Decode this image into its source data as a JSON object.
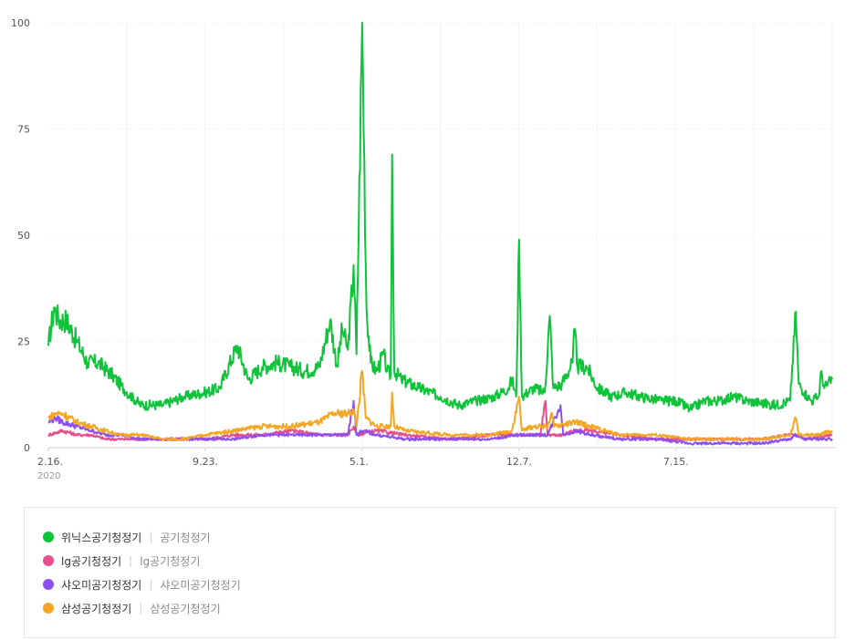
{
  "chart_data": {
    "type": "line",
    "ylim": [
      0,
      100
    ],
    "y_ticks": [
      "0",
      "25",
      "50",
      "75",
      "100"
    ],
    "x_ticks": [
      {
        "label": "2.16.",
        "sub": "2020",
        "index": 0
      },
      {
        "label": "9.23.",
        "index": 220
      },
      {
        "label": "5.1.",
        "index": 440
      },
      {
        "label": "12.7.",
        "index": 660
      },
      {
        "label": "7.15.",
        "index": 880
      }
    ],
    "n_points": 1100,
    "grid": true,
    "series": [
      {
        "name": "위닉스공기청정기",
        "term": "공기청정기",
        "color": "#0fc33a",
        "anchors": [
          [
            0,
            24
          ],
          [
            8,
            33
          ],
          [
            15,
            30
          ],
          [
            25,
            30
          ],
          [
            40,
            25
          ],
          [
            55,
            20
          ],
          [
            70,
            20
          ],
          [
            90,
            17
          ],
          [
            110,
            13
          ],
          [
            130,
            10
          ],
          [
            160,
            10
          ],
          [
            190,
            12
          ],
          [
            220,
            13
          ],
          [
            240,
            14
          ],
          [
            265,
            24
          ],
          [
            280,
            16
          ],
          [
            300,
            19
          ],
          [
            320,
            20
          ],
          [
            340,
            19
          ],
          [
            360,
            18
          ],
          [
            380,
            19
          ],
          [
            395,
            30
          ],
          [
            405,
            19
          ],
          [
            412,
            28
          ],
          [
            420,
            23
          ],
          [
            428,
            43
          ],
          [
            432,
            22
          ],
          [
            440,
            100
          ],
          [
            446,
            33
          ],
          [
            452,
            20
          ],
          [
            460,
            18
          ],
          [
            470,
            22
          ],
          [
            475,
            18
          ],
          [
            480,
            17
          ],
          [
            482,
            69
          ],
          [
            485,
            18
          ],
          [
            495,
            16
          ],
          [
            520,
            14
          ],
          [
            550,
            12
          ],
          [
            575,
            10
          ],
          [
            600,
            11
          ],
          [
            625,
            12
          ],
          [
            645,
            14
          ],
          [
            650,
            16
          ],
          [
            656,
            12
          ],
          [
            660,
            49
          ],
          [
            664,
            12
          ],
          [
            680,
            14
          ],
          [
            696,
            13
          ],
          [
            703,
            31
          ],
          [
            708,
            14
          ],
          [
            720,
            15
          ],
          [
            735,
            20
          ],
          [
            738,
            28
          ],
          [
            742,
            19
          ],
          [
            755,
            19
          ],
          [
            770,
            14
          ],
          [
            790,
            12
          ],
          [
            810,
            13
          ],
          [
            830,
            12
          ],
          [
            860,
            11
          ],
          [
            880,
            11
          ],
          [
            900,
            9
          ],
          [
            920,
            11
          ],
          [
            940,
            11
          ],
          [
            960,
            12
          ],
          [
            980,
            11
          ],
          [
            1020,
            10
          ],
          [
            1040,
            11
          ],
          [
            1048,
            32
          ],
          [
            1052,
            15
          ],
          [
            1060,
            13
          ],
          [
            1070,
            11
          ],
          [
            1080,
            12
          ],
          [
            1084,
            18
          ],
          [
            1088,
            14
          ],
          [
            1099,
            16
          ]
        ]
      },
      {
        "name": "lg공기청정기",
        "term": "lg공기청정기",
        "color": "#e64f8c",
        "anchors": [
          [
            0,
            3
          ],
          [
            20,
            4
          ],
          [
            40,
            3
          ],
          [
            60,
            3
          ],
          [
            80,
            2
          ],
          [
            110,
            2
          ],
          [
            160,
            2
          ],
          [
            200,
            2
          ],
          [
            220,
            2
          ],
          [
            260,
            3
          ],
          [
            300,
            3
          ],
          [
            340,
            4
          ],
          [
            380,
            3
          ],
          [
            420,
            3
          ],
          [
            428,
            5
          ],
          [
            432,
            3
          ],
          [
            460,
            4
          ],
          [
            500,
            3
          ],
          [
            560,
            2
          ],
          [
            620,
            3
          ],
          [
            650,
            3
          ],
          [
            660,
            3
          ],
          [
            690,
            3
          ],
          [
            697,
            11
          ],
          [
            700,
            3
          ],
          [
            720,
            3
          ],
          [
            740,
            4
          ],
          [
            760,
            4
          ],
          [
            800,
            3
          ],
          [
            850,
            2
          ],
          [
            900,
            2
          ],
          [
            950,
            2
          ],
          [
            1000,
            2
          ],
          [
            1040,
            3
          ],
          [
            1048,
            3
          ],
          [
            1060,
            2
          ],
          [
            1099,
            3
          ]
        ]
      },
      {
        "name": "샤오미공기청정기",
        "term": "샤오미공기청정기",
        "color": "#8e4ff0",
        "anchors": [
          [
            0,
            6
          ],
          [
            10,
            7
          ],
          [
            20,
            6
          ],
          [
            40,
            5
          ],
          [
            60,
            4
          ],
          [
            80,
            3
          ],
          [
            100,
            3
          ],
          [
            130,
            2
          ],
          [
            160,
            2
          ],
          [
            190,
            2
          ],
          [
            220,
            2
          ],
          [
            260,
            2
          ],
          [
            300,
            3
          ],
          [
            340,
            3
          ],
          [
            380,
            3
          ],
          [
            420,
            3
          ],
          [
            428,
            11
          ],
          [
            432,
            3
          ],
          [
            440,
            4
          ],
          [
            460,
            3
          ],
          [
            500,
            2
          ],
          [
            560,
            2
          ],
          [
            620,
            2
          ],
          [
            660,
            3
          ],
          [
            700,
            3
          ],
          [
            718,
            10
          ],
          [
            722,
            3
          ],
          [
            740,
            4
          ],
          [
            760,
            3
          ],
          [
            800,
            2
          ],
          [
            850,
            2
          ],
          [
            900,
            1
          ],
          [
            950,
            1
          ],
          [
            1000,
            1
          ],
          [
            1040,
            2
          ],
          [
            1048,
            3
          ],
          [
            1060,
            2
          ],
          [
            1099,
            2
          ]
        ]
      },
      {
        "name": "삼성공기청정기",
        "term": "삼성공기청정기",
        "color": "#f5a623",
        "anchors": [
          [
            0,
            7
          ],
          [
            10,
            8
          ],
          [
            20,
            8
          ],
          [
            40,
            6
          ],
          [
            60,
            5
          ],
          [
            80,
            4
          ],
          [
            100,
            3
          ],
          [
            130,
            3
          ],
          [
            160,
            2
          ],
          [
            190,
            2
          ],
          [
            220,
            3
          ],
          [
            260,
            4
          ],
          [
            300,
            5
          ],
          [
            340,
            5
          ],
          [
            380,
            6
          ],
          [
            400,
            8
          ],
          [
            420,
            8
          ],
          [
            428,
            9
          ],
          [
            432,
            5
          ],
          [
            440,
            18
          ],
          [
            445,
            7
          ],
          [
            460,
            5
          ],
          [
            480,
            5
          ],
          [
            482,
            13
          ],
          [
            485,
            5
          ],
          [
            500,
            4
          ],
          [
            560,
            3
          ],
          [
            620,
            3
          ],
          [
            650,
            4
          ],
          [
            660,
            12
          ],
          [
            664,
            4
          ],
          [
            680,
            5
          ],
          [
            700,
            5
          ],
          [
            705,
            8
          ],
          [
            710,
            5
          ],
          [
            740,
            6
          ],
          [
            760,
            5
          ],
          [
            800,
            3
          ],
          [
            850,
            3
          ],
          [
            900,
            2
          ],
          [
            950,
            2
          ],
          [
            1000,
            2
          ],
          [
            1040,
            3
          ],
          [
            1048,
            7
          ],
          [
            1052,
            3
          ],
          [
            1060,
            3
          ],
          [
            1080,
            3
          ],
          [
            1099,
            4
          ]
        ]
      }
    ]
  }
}
